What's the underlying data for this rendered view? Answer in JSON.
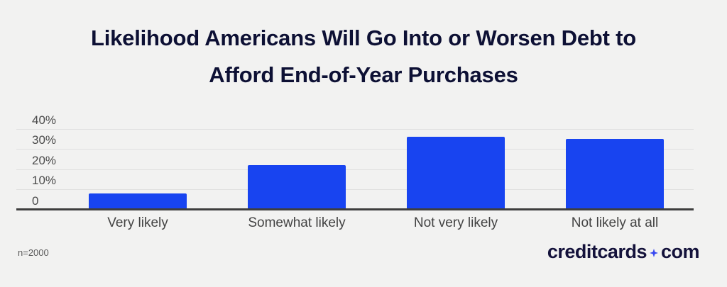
{
  "title": {
    "line1": "Likelihood Americans Will Go Into or Worsen Debt to",
    "line2": "Afford End-of-Year Purchases"
  },
  "chart_data": {
    "type": "bar",
    "title": "Likelihood Americans Will Go Into or Worsen Debt to Afford End-of-Year Purchases",
    "categories": [
      "Very likely",
      "Somewhat likely",
      "Not very likely",
      "Not likely at all"
    ],
    "values": [
      8,
      22,
      36,
      35
    ],
    "value_unit": "percent",
    "ylim": [
      0,
      40
    ],
    "yticks": [
      {
        "label": "40%",
        "value": 40
      },
      {
        "label": "30%",
        "value": 30
      },
      {
        "label": "20%",
        "value": 20
      },
      {
        "label": "10%",
        "value": 10
      },
      {
        "label": "0",
        "value": 0
      }
    ],
    "grid": true,
    "legend": false,
    "bar_color": "#1844f0"
  },
  "footer": {
    "sample_size": "n=2000"
  },
  "logo": {
    "part1": "creditcards",
    "part2": "com",
    "star_color": "#3747f0",
    "text_color": "#14123b"
  },
  "colors": {
    "background": "#f2f2f1",
    "title_text": "#0d1034",
    "axis_line": "#3e3e3e",
    "gridline": "#e0e0e0",
    "tick_text": "#4b4b4b"
  }
}
